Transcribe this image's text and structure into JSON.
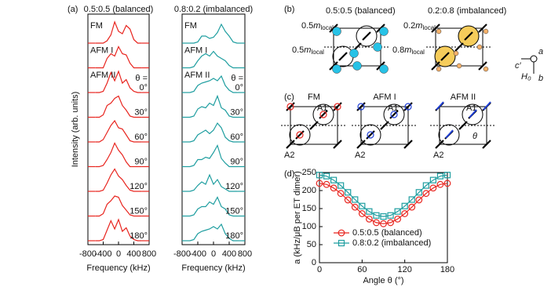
{
  "panel_labels": [
    "(a)",
    "(b)",
    "(c)",
    "(d)"
  ],
  "chart_data": [
    {
      "type": "ridgeline",
      "title": "0.5:0.5 (balanced)",
      "ylabel": "Intensity (arb. units)",
      "xlabel": "Frequency (kHz)",
      "x": [
        -600,
        -500,
        -400,
        -300,
        -200,
        -100,
        0,
        100,
        200,
        300,
        400,
        500,
        600
      ],
      "xlim": [
        -800,
        800
      ],
      "xticks": [
        -800,
        -400,
        0,
        400,
        800
      ],
      "ylim": [
        0,
        1
      ],
      "group_label": "AFM II",
      "angle_prefix": "θ =",
      "color": "#e8251f",
      "series": [
        {
          "name": "FM",
          "values": [
            0,
            0,
            0,
            0.1,
            0.35,
            0.9,
            0.5,
            0.4,
            0.75,
            0.6,
            0.15,
            0,
            0
          ]
        },
        {
          "name": "AFM I",
          "values": [
            0,
            0,
            0,
            0.4,
            0.6,
            0.5,
            0.9,
            0.6,
            0.55,
            0.2,
            0,
            0,
            0
          ]
        },
        {
          "name": "0°",
          "values": [
            0,
            0,
            0.05,
            0.4,
            0.85,
            0.5,
            0.9,
            0.4,
            0.55,
            0.2,
            0.05,
            0,
            0
          ]
        },
        {
          "name": "30°",
          "values": [
            0,
            0,
            0.1,
            0.5,
            0.6,
            0.8,
            0.9,
            0.5,
            0.3,
            0.05,
            0,
            0,
            0
          ]
        },
        {
          "name": "60°",
          "values": [
            0,
            0,
            0.1,
            0.4,
            0.7,
            0.9,
            0.6,
            0.55,
            0.3,
            0.05,
            0,
            0,
            0
          ]
        },
        {
          "name": "90°",
          "values": [
            0,
            0,
            0.05,
            0.3,
            0.6,
            1.0,
            0.7,
            0.5,
            0.2,
            0,
            0,
            0,
            0
          ]
        },
        {
          "name": "120°",
          "values": [
            0,
            0,
            0.05,
            0.35,
            0.7,
            0.95,
            0.65,
            0.5,
            0.25,
            0.05,
            0,
            0,
            0
          ]
        },
        {
          "name": "150°",
          "values": [
            0,
            0,
            0.1,
            0.5,
            0.65,
            0.85,
            0.8,
            0.45,
            0.25,
            0.05,
            0,
            0,
            0
          ]
        },
        {
          "name": "180°",
          "values": [
            0,
            0,
            0.05,
            0.45,
            0.85,
            0.5,
            0.9,
            0.4,
            0.55,
            0.2,
            0.05,
            0,
            0
          ]
        }
      ]
    },
    {
      "type": "ridgeline",
      "title": "0.8:0.2 (imbalanced)",
      "xlabel": "Frequency (kHz)",
      "x": [
        -600,
        -500,
        -400,
        -300,
        -200,
        -100,
        0,
        100,
        200,
        300,
        400,
        500,
        600
      ],
      "xlim": [
        -800,
        800
      ],
      "xticks": [
        -800,
        -400,
        0,
        400,
        800
      ],
      "ylim": [
        0,
        1
      ],
      "group_label": "AFM II",
      "angle_prefix": "θ =",
      "color": "#1f9ea0",
      "series": [
        {
          "name": "FM",
          "values": [
            0,
            0,
            0.05,
            0.3,
            0.3,
            0.2,
            0.25,
            0.45,
            0.8,
            0.5,
            0.3,
            0.05,
            0
          ]
        },
        {
          "name": "AFM I",
          "values": [
            0,
            0.05,
            0.3,
            0.5,
            0.6,
            0.5,
            0.7,
            0.5,
            0.4,
            0.3,
            0.1,
            0,
            0
          ]
        },
        {
          "name": "0°",
          "values": [
            0,
            0.05,
            0.3,
            0.4,
            0.45,
            0.5,
            0.6,
            0.5,
            0.7,
            0.3,
            0.1,
            0,
            0
          ]
        },
        {
          "name": "30°",
          "values": [
            0,
            0.05,
            0.35,
            0.45,
            0.4,
            0.6,
            0.5,
            0.9,
            0.4,
            0.3,
            0.05,
            0,
            0
          ]
        },
        {
          "name": "60°",
          "values": [
            0,
            0.05,
            0.3,
            0.4,
            0.5,
            0.35,
            0.5,
            0.8,
            0.6,
            0.2,
            0.05,
            0,
            0
          ]
        },
        {
          "name": "90°",
          "values": [
            0,
            0.05,
            0.3,
            0.3,
            0.4,
            0.35,
            0.6,
            0.9,
            0.35,
            0.15,
            0,
            0,
            0
          ]
        },
        {
          "name": "120°",
          "values": [
            0,
            0.05,
            0.25,
            0.4,
            0.3,
            0.7,
            0.3,
            0.5,
            0.2,
            0.1,
            0,
            0,
            0
          ]
        },
        {
          "name": "150°",
          "values": [
            0,
            0.05,
            0.3,
            0.4,
            0.4,
            0.6,
            0.5,
            0.8,
            0.4,
            0.3,
            0.05,
            0,
            0
          ]
        },
        {
          "name": "180°",
          "values": [
            0,
            0.05,
            0.3,
            0.4,
            0.45,
            0.5,
            0.6,
            0.5,
            0.7,
            0.3,
            0.1,
            0,
            0
          ]
        }
      ]
    },
    {
      "type": "line",
      "xlabel": "Angle θ (°)",
      "ylabel": "a (kHz/μB per ET dimer)",
      "x": [
        0,
        10,
        20,
        30,
        40,
        50,
        60,
        70,
        80,
        90,
        100,
        110,
        120,
        130,
        140,
        150,
        160,
        170,
        180
      ],
      "xlim": [
        0,
        180
      ],
      "xticks": [
        0,
        60,
        120,
        180
      ],
      "ylim": [
        0,
        250
      ],
      "yticks": [
        0,
        50,
        100,
        150,
        200,
        250
      ],
      "series": [
        {
          "name": "0.5:0.5 (balanced)",
          "color": "#e8251f",
          "marker": "circle",
          "values": [
            220,
            217,
            207,
            192,
            174,
            154,
            136,
            121,
            111,
            108,
            111,
            121,
            136,
            154,
            174,
            192,
            207,
            217,
            220
          ]
        },
        {
          "name": "0.8:0.2 (imbalanced)",
          "color": "#1f9ea0",
          "marker": "square",
          "values": [
            243,
            240,
            229,
            214,
            195,
            175,
            157,
            142,
            131,
            128,
            131,
            142,
            157,
            175,
            195,
            214,
            229,
            240,
            243
          ]
        }
      ]
    }
  ],
  "panel_b": {
    "titles": [
      "0.5:0.5 (balanced)",
      "0.2:0.8 (imbalanced)"
    ],
    "moments": [
      {
        "value": "0.5",
        "symbol": "m",
        "subscript": "local"
      },
      {
        "value": "0.5",
        "symbol": "m",
        "subscript": "local"
      },
      {
        "value": "0.2",
        "symbol": "m",
        "subscript": "local"
      },
      {
        "value": "0.8",
        "symbol": "m",
        "subscript": "local"
      }
    ],
    "axes": [
      "a",
      "c′",
      "H₀",
      "b"
    ]
  },
  "panel_c": {
    "titles": [
      "FM",
      "AFM I",
      "AFM II"
    ],
    "sites": [
      "A1",
      "A2"
    ],
    "angle": "θ"
  }
}
